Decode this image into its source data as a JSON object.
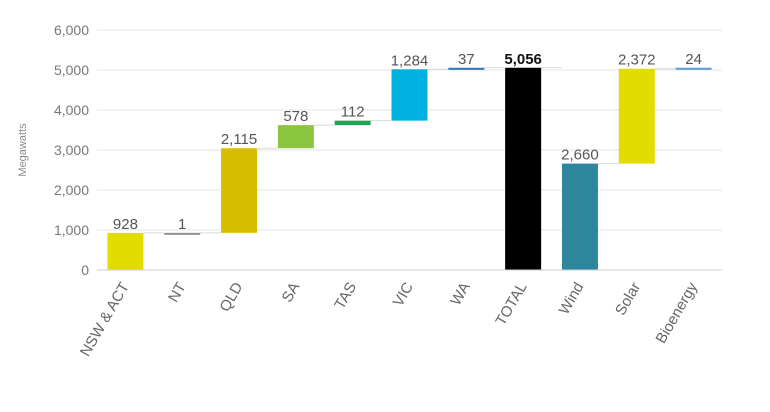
{
  "chart_data": {
    "type": "bar",
    "subtype": "waterfall",
    "ylabel": "Megawatts",
    "ylim": [
      0,
      6000
    ],
    "yticks": [
      "0",
      "1,000",
      "2,000",
      "3,000",
      "4,000",
      "5,000",
      "6,000"
    ],
    "grid": true,
    "bars": [
      {
        "category": "NSW & ACT",
        "base": 0,
        "value": 928,
        "label": "928",
        "color": "#e3dc00"
      },
      {
        "category": "NT",
        "base": 928,
        "value": 1,
        "label": "1",
        "color": "#8f8f8f"
      },
      {
        "category": "QLD",
        "base": 929,
        "value": 2115,
        "label": "2,115",
        "color": "#d9bd00"
      },
      {
        "category": "SA",
        "base": 3044,
        "value": 578,
        "label": "578",
        "color": "#8cc63f"
      },
      {
        "category": "TAS",
        "base": 3622,
        "value": 112,
        "label": "112",
        "color": "#23a455"
      },
      {
        "category": "VIC",
        "base": 3734,
        "value": 1284,
        "label": "1,284",
        "color": "#00b0e0"
      },
      {
        "category": "WA",
        "base": 5018,
        "value": 37,
        "label": "37",
        "color": "#2f73b5"
      },
      {
        "category": "TOTAL",
        "base": 0,
        "value": 5056,
        "label": "5,056",
        "color": "#000000",
        "bold": true
      },
      {
        "category": "Wind",
        "base": 0,
        "value": 2660,
        "label": "2,660",
        "color": "#2e869d"
      },
      {
        "category": "Solar",
        "base": 2660,
        "value": 2372,
        "label": "2,372",
        "color": "#e3dc00"
      },
      {
        "category": "Bioenergy",
        "base": 5032,
        "value": 24,
        "label": "24",
        "color": "#5b9bd5"
      }
    ]
  }
}
